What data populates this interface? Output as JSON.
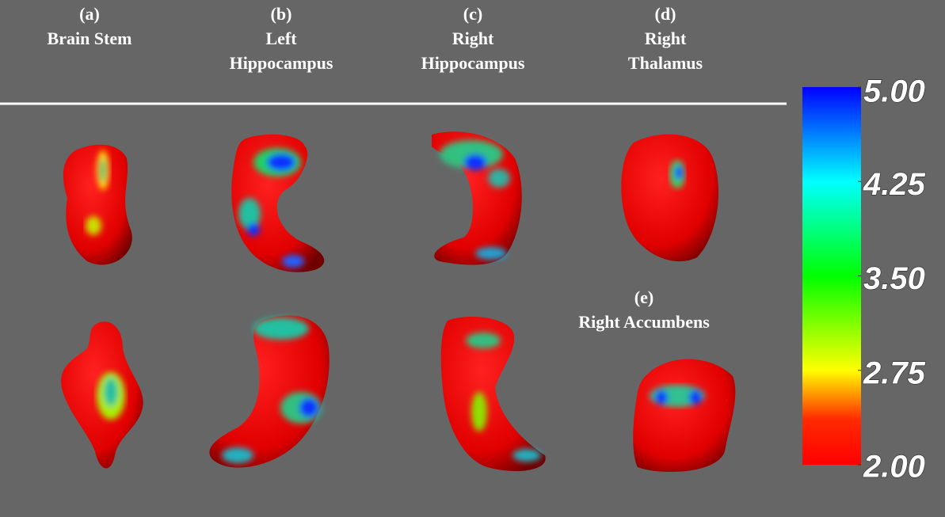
{
  "panels": [
    {
      "letter": "(a)",
      "name_lines": [
        "Brain Stem"
      ]
    },
    {
      "letter": "(b)",
      "name_lines": [
        "Left",
        "Hippocampus"
      ]
    },
    {
      "letter": "(c)",
      "name_lines": [
        "Right",
        "Hippocampus"
      ]
    },
    {
      "letter": "(d)",
      "name_lines": [
        "Right",
        "Thalamus"
      ]
    },
    {
      "letter": "(e)",
      "name_lines": [
        "Right Accumbens"
      ]
    }
  ],
  "colorbar": {
    "range": [
      2,
      5
    ],
    "ticks": [
      {
        "value": 5,
        "label": "5.00"
      },
      {
        "value": 4.25,
        "label": "4.25"
      },
      {
        "value": 3.5,
        "label": "3.50"
      },
      {
        "value": 2.75,
        "label": "2.75"
      },
      {
        "value": 2,
        "label": "2.00"
      }
    ]
  }
}
